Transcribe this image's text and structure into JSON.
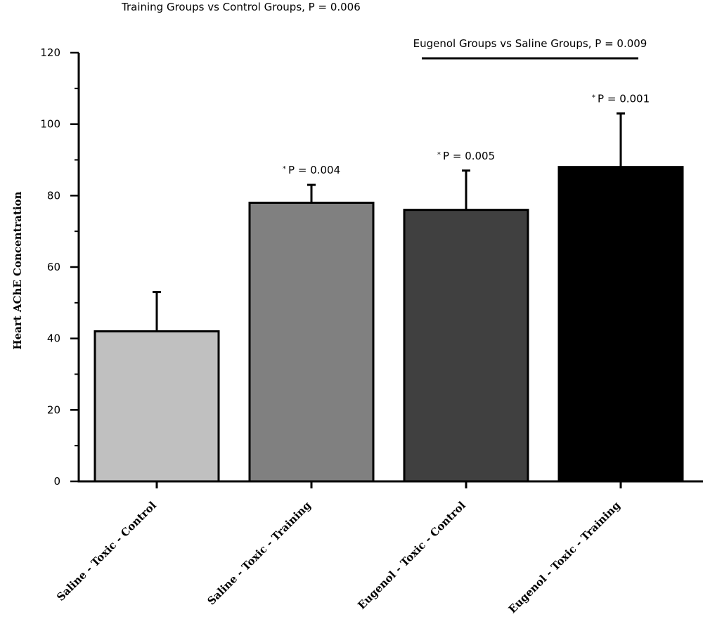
{
  "chart_data": {
    "type": "bar",
    "categories": [
      "Saline - Toxic - Control",
      "Saline - Toxic - Training",
      "Eugenol - Toxic - Control",
      "Eugenol - Toxic - Training"
    ],
    "values": [
      42,
      78,
      76,
      88
    ],
    "errors": [
      11,
      5,
      11,
      15
    ],
    "colors": [
      "#c0c0c0",
      "#808080",
      "#404040",
      "#000000"
    ],
    "ylabel": "Heart AChE Concentration",
    "xlabel": "",
    "ylim": [
      0,
      120
    ],
    "yticks": [
      0,
      20,
      40,
      60,
      80,
      100,
      120
    ],
    "significance": [
      "",
      "P = 0.004",
      "P = 0.005",
      "P = 0.001"
    ],
    "significance_marker": "*",
    "comparisons": [
      {
        "text": "Training Groups vs Control Groups, P = 0.006",
        "bar": false
      },
      {
        "text": "Eugenol Groups vs Saline Groups, P = 0.009",
        "bar": true,
        "from_category": 2,
        "to_category": 3
      }
    ],
    "grid": false,
    "legend": "none"
  }
}
